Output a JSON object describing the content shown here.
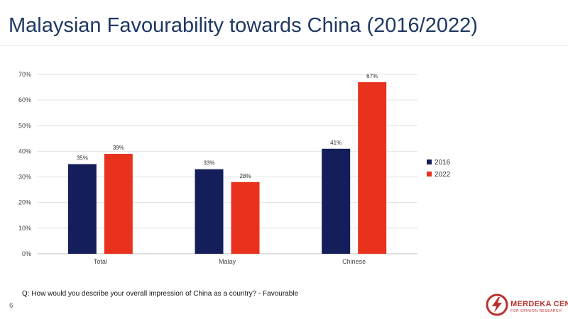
{
  "slide": {
    "title": "Malaysian Favourability towards China (2016/2022)",
    "question": "Q: How would you describe your overall impression of China as a country? - Favourable",
    "page_number": "6"
  },
  "logo": {
    "name": "MERDEKA CENTER",
    "subtitle": "FOR OPINION RESEARCH",
    "color": "#b8312f"
  },
  "chart_data": {
    "type": "bar",
    "title": "",
    "xlabel": "",
    "ylabel": "",
    "categories": [
      "Total",
      "Malay",
      "Chinese"
    ],
    "series": [
      {
        "name": "2016",
        "color": "#141e5a",
        "values": [
          35,
          33,
          41
        ],
        "labels": [
          "35%",
          "33%",
          "41%"
        ]
      },
      {
        "name": "2022",
        "color": "#e8321e",
        "values": [
          39,
          28,
          67
        ],
        "labels": [
          "39%",
          "28%",
          "67%"
        ]
      }
    ],
    "ylim": [
      0,
      70
    ],
    "yticks": [
      0,
      10,
      20,
      30,
      40,
      50,
      60,
      70
    ],
    "ytick_labels": [
      "0%",
      "10%",
      "20%",
      "30%",
      "40%",
      "50%",
      "60%",
      "70%"
    ],
    "grid": true,
    "legend_position": "right"
  }
}
